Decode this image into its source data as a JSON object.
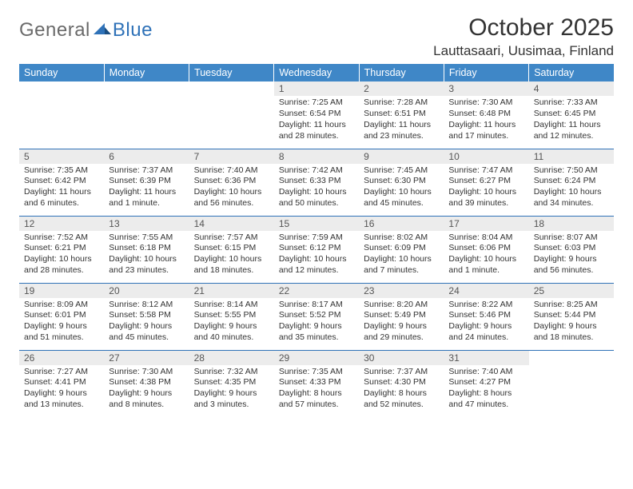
{
  "brand": {
    "general": "General",
    "blue": "Blue"
  },
  "colors": {
    "header_bg": "#3f87c7",
    "rule": "#2f72b8",
    "daynum_bg": "#ececec",
    "text": "#333333",
    "logo_gray": "#6a6a6a",
    "logo_blue": "#2f72b8"
  },
  "title": "October 2025",
  "location": "Lauttasaari, Uusimaa, Finland",
  "weekdays": [
    "Sunday",
    "Monday",
    "Tuesday",
    "Wednesday",
    "Thursday",
    "Friday",
    "Saturday"
  ],
  "weeks": [
    [
      null,
      null,
      null,
      {
        "n": "1",
        "sr": "7:25 AM",
        "ss": "6:54 PM",
        "dl": "11 hours and 28 minutes."
      },
      {
        "n": "2",
        "sr": "7:28 AM",
        "ss": "6:51 PM",
        "dl": "11 hours and 23 minutes."
      },
      {
        "n": "3",
        "sr": "7:30 AM",
        "ss": "6:48 PM",
        "dl": "11 hours and 17 minutes."
      },
      {
        "n": "4",
        "sr": "7:33 AM",
        "ss": "6:45 PM",
        "dl": "11 hours and 12 minutes."
      }
    ],
    [
      {
        "n": "5",
        "sr": "7:35 AM",
        "ss": "6:42 PM",
        "dl": "11 hours and 6 minutes."
      },
      {
        "n": "6",
        "sr": "7:37 AM",
        "ss": "6:39 PM",
        "dl": "11 hours and 1 minute."
      },
      {
        "n": "7",
        "sr": "7:40 AM",
        "ss": "6:36 PM",
        "dl": "10 hours and 56 minutes."
      },
      {
        "n": "8",
        "sr": "7:42 AM",
        "ss": "6:33 PM",
        "dl": "10 hours and 50 minutes."
      },
      {
        "n": "9",
        "sr": "7:45 AM",
        "ss": "6:30 PM",
        "dl": "10 hours and 45 minutes."
      },
      {
        "n": "10",
        "sr": "7:47 AM",
        "ss": "6:27 PM",
        "dl": "10 hours and 39 minutes."
      },
      {
        "n": "11",
        "sr": "7:50 AM",
        "ss": "6:24 PM",
        "dl": "10 hours and 34 minutes."
      }
    ],
    [
      {
        "n": "12",
        "sr": "7:52 AM",
        "ss": "6:21 PM",
        "dl": "10 hours and 28 minutes."
      },
      {
        "n": "13",
        "sr": "7:55 AM",
        "ss": "6:18 PM",
        "dl": "10 hours and 23 minutes."
      },
      {
        "n": "14",
        "sr": "7:57 AM",
        "ss": "6:15 PM",
        "dl": "10 hours and 18 minutes."
      },
      {
        "n": "15",
        "sr": "7:59 AM",
        "ss": "6:12 PM",
        "dl": "10 hours and 12 minutes."
      },
      {
        "n": "16",
        "sr": "8:02 AM",
        "ss": "6:09 PM",
        "dl": "10 hours and 7 minutes."
      },
      {
        "n": "17",
        "sr": "8:04 AM",
        "ss": "6:06 PM",
        "dl": "10 hours and 1 minute."
      },
      {
        "n": "18",
        "sr": "8:07 AM",
        "ss": "6:03 PM",
        "dl": "9 hours and 56 minutes."
      }
    ],
    [
      {
        "n": "19",
        "sr": "8:09 AM",
        "ss": "6:01 PM",
        "dl": "9 hours and 51 minutes."
      },
      {
        "n": "20",
        "sr": "8:12 AM",
        "ss": "5:58 PM",
        "dl": "9 hours and 45 minutes."
      },
      {
        "n": "21",
        "sr": "8:14 AM",
        "ss": "5:55 PM",
        "dl": "9 hours and 40 minutes."
      },
      {
        "n": "22",
        "sr": "8:17 AM",
        "ss": "5:52 PM",
        "dl": "9 hours and 35 minutes."
      },
      {
        "n": "23",
        "sr": "8:20 AM",
        "ss": "5:49 PM",
        "dl": "9 hours and 29 minutes."
      },
      {
        "n": "24",
        "sr": "8:22 AM",
        "ss": "5:46 PM",
        "dl": "9 hours and 24 minutes."
      },
      {
        "n": "25",
        "sr": "8:25 AM",
        "ss": "5:44 PM",
        "dl": "9 hours and 18 minutes."
      }
    ],
    [
      {
        "n": "26",
        "sr": "7:27 AM",
        "ss": "4:41 PM",
        "dl": "9 hours and 13 minutes."
      },
      {
        "n": "27",
        "sr": "7:30 AM",
        "ss": "4:38 PM",
        "dl": "9 hours and 8 minutes."
      },
      {
        "n": "28",
        "sr": "7:32 AM",
        "ss": "4:35 PM",
        "dl": "9 hours and 3 minutes."
      },
      {
        "n": "29",
        "sr": "7:35 AM",
        "ss": "4:33 PM",
        "dl": "8 hours and 57 minutes."
      },
      {
        "n": "30",
        "sr": "7:37 AM",
        "ss": "4:30 PM",
        "dl": "8 hours and 52 minutes."
      },
      {
        "n": "31",
        "sr": "7:40 AM",
        "ss": "4:27 PM",
        "dl": "8 hours and 47 minutes."
      },
      null
    ]
  ],
  "labels": {
    "sunrise": "Sunrise:",
    "sunset": "Sunset:",
    "daylight": "Daylight:"
  }
}
